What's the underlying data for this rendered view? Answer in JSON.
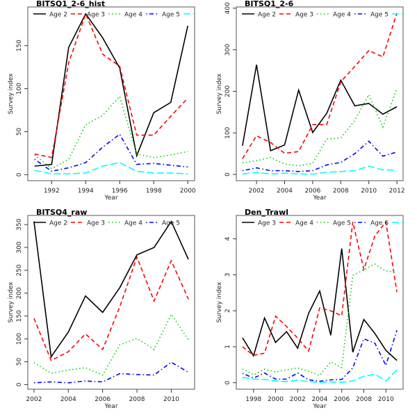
{
  "chart_data": [
    {
      "type": "line",
      "title": "BITSQ1_2-6_hist",
      "xlabel": "Year",
      "ylabel": "Survey index",
      "x": [
        1991,
        1992,
        1993,
        1994,
        1995,
        1996,
        1997,
        1998,
        1999,
        2000
      ],
      "xticks": [
        1992,
        1994,
        1996,
        1998,
        2000
      ],
      "yticks": [
        0,
        50,
        100,
        150
      ],
      "xlim": [
        1990.6,
        2000.4
      ],
      "ylim": [
        -7,
        195
      ],
      "legend_position": "top",
      "series": [
        {
          "name": "Age 2",
          "color": "#000000",
          "dash": "solid",
          "values": [
            10,
            12,
            148,
            187,
            159,
            124,
            22,
            72,
            84,
            173
          ]
        },
        {
          "name": "Age 3",
          "color": "#ff0000",
          "dash": "dashed",
          "values": [
            24,
            20,
            130,
            187,
            140,
            126,
            46,
            46,
            68,
            89
          ]
        },
        {
          "name": "Age 4",
          "color": "#00cd00",
          "dash": "dotted",
          "values": [
            23,
            7,
            18,
            58,
            69,
            91,
            24,
            20,
            23,
            27
          ]
        },
        {
          "name": "Age 5",
          "color": "#0000ff",
          "dash": "dotdash",
          "values": [
            18,
            4,
            8,
            14,
            32,
            47,
            12,
            13,
            11,
            9
          ]
        },
        {
          "name": "Age 6",
          "color": "#00ffff",
          "dash": "longdash",
          "values": [
            5,
            1,
            1,
            2,
            10,
            14,
            4,
            2,
            2,
            1
          ]
        }
      ]
    },
    {
      "type": "line",
      "title": "BITSQ1_2-6",
      "xlabel": "Year",
      "ylabel": "Survey index",
      "x": [
        2001,
        2002,
        2003,
        2004,
        2005,
        2006,
        2007,
        2008,
        2009,
        2010,
        2011,
        2012
      ],
      "xticks": [
        2002,
        2004,
        2006,
        2008,
        2010,
        2012
      ],
      "yticks": [
        0,
        100,
        200,
        300,
        400
      ],
      "xlim": [
        2000.56,
        2012.44
      ],
      "ylim": [
        -15,
        403
      ],
      "legend_position": "top",
      "series": [
        {
          "name": "Age 2",
          "color": "#000000",
          "dash": "solid",
          "values": [
            69,
            264,
            57,
            71,
            203,
            101,
            147,
            227,
            165,
            171,
            145,
            163
          ]
        },
        {
          "name": "Age 3",
          "color": "#ff0000",
          "dash": "dashed",
          "values": [
            38,
            93,
            77,
            51,
            55,
            120,
            120,
            223,
            260,
            298,
            283,
            388
          ]
        },
        {
          "name": "Age 4",
          "color": "#00cd00",
          "dash": "dotted",
          "values": [
            28,
            33,
            41,
            25,
            21,
            27,
            85,
            88,
            130,
            192,
            114,
            207
          ]
        },
        {
          "name": "Age 5",
          "color": "#0000ff",
          "dash": "dotdash",
          "values": [
            9,
            16,
            9,
            9,
            7,
            9,
            23,
            29,
            50,
            80,
            44,
            54
          ]
        },
        {
          "name": "Age 6",
          "color": "#00ffff",
          "dash": "longdash",
          "values": [
            1,
            5,
            1,
            3,
            1,
            1,
            5,
            7,
            9,
            20,
            11,
            10
          ]
        }
      ]
    },
    {
      "type": "line",
      "title": "BITSQ4_raw",
      "xlabel": "Year",
      "ylabel": "Survey index",
      "x": [
        2002,
        2003,
        2004,
        2005,
        2006,
        2007,
        2008,
        2009,
        2010,
        2011
      ],
      "xticks": [
        2002,
        2004,
        2006,
        2008,
        2010
      ],
      "yticks": [
        0,
        50,
        100,
        150,
        200,
        250,
        300,
        350
      ],
      "xlim": [
        2001.64,
        2011.36
      ],
      "ylim": [
        -10,
        370
      ],
      "legend_position": "top",
      "series": [
        {
          "name": "Age 2",
          "color": "#000000",
          "dash": "solid",
          "values": [
            357,
            61,
            115,
            194,
            158,
            212,
            284,
            300,
            357,
            274
          ]
        },
        {
          "name": "Age 3",
          "color": "#ff0000",
          "dash": "dashed",
          "values": [
            145,
            53,
            72,
            111,
            77,
            170,
            279,
            183,
            271,
            187
          ]
        },
        {
          "name": "Age 4",
          "color": "#00cd00",
          "dash": "dotted",
          "values": [
            48,
            25,
            32,
            37,
            21,
            87,
            101,
            77,
            154,
            98
          ]
        },
        {
          "name": "Age 5",
          "color": "#0000ff",
          "dash": "dotdash",
          "values": [
            4,
            6,
            4,
            8,
            6,
            24,
            22,
            21,
            49,
            27
          ]
        }
      ]
    },
    {
      "type": "line",
      "title": "Den_Trawl",
      "xlabel": "Year",
      "ylabel": "Survey index",
      "x": [
        1997,
        1998,
        1999,
        2000,
        2001,
        2002,
        2003,
        2004,
        2005,
        2006,
        2007,
        2008,
        2009,
        2010,
        2011
      ],
      "xticks": [
        1998,
        2000,
        2002,
        2004,
        2006,
        2008,
        2010
      ],
      "yticks": [
        0,
        1,
        2,
        3,
        4
      ],
      "xlim": [
        1996.44,
        2011.56
      ],
      "ylim": [
        -0.18,
        4.65
      ],
      "legend_position": "top",
      "series": [
        {
          "name": "Age 3",
          "color": "#000000",
          "dash": "solid",
          "values": [
            1.25,
            0.75,
            1.8,
            1.12,
            1.42,
            0.96,
            1.93,
            2.55,
            1.32,
            3.73,
            0.85,
            1.76,
            1.37,
            0.9,
            0.62
          ]
        },
        {
          "name": "Age 4",
          "color": "#ff0000",
          "dash": "dashed",
          "values": [
            1.0,
            0.76,
            0.82,
            1.85,
            1.56,
            1.24,
            0.88,
            2.08,
            2.0,
            1.86,
            4.47,
            3.15,
            4.08,
            4.47,
            2.52
          ]
        },
        {
          "name": "Age 5",
          "color": "#00cd00",
          "dash": "dotted",
          "values": [
            0.38,
            0.22,
            0.38,
            0.3,
            0.36,
            0.41,
            0.32,
            0.2,
            0.58,
            0.42,
            2.98,
            3.14,
            3.3,
            3.1,
            3.08
          ]
        },
        {
          "name": "Age 6",
          "color": "#0000ff",
          "dash": "dotdash",
          "values": [
            0.26,
            0.13,
            0.27,
            0.1,
            0.1,
            0.27,
            0.08,
            0.04,
            0.08,
            0.09,
            0.41,
            1.22,
            1.1,
            0.48,
            1.46
          ]
        },
        {
          "name": "Age 7",
          "color": "#00ffff",
          "dash": "longdash",
          "values": [
            0.15,
            0.1,
            0.09,
            0.05,
            0.03,
            0.07,
            0.03,
            0.01,
            0.02,
            0.01,
            0.05,
            0.18,
            0.24,
            0.05,
            0.36
          ]
        }
      ]
    }
  ]
}
